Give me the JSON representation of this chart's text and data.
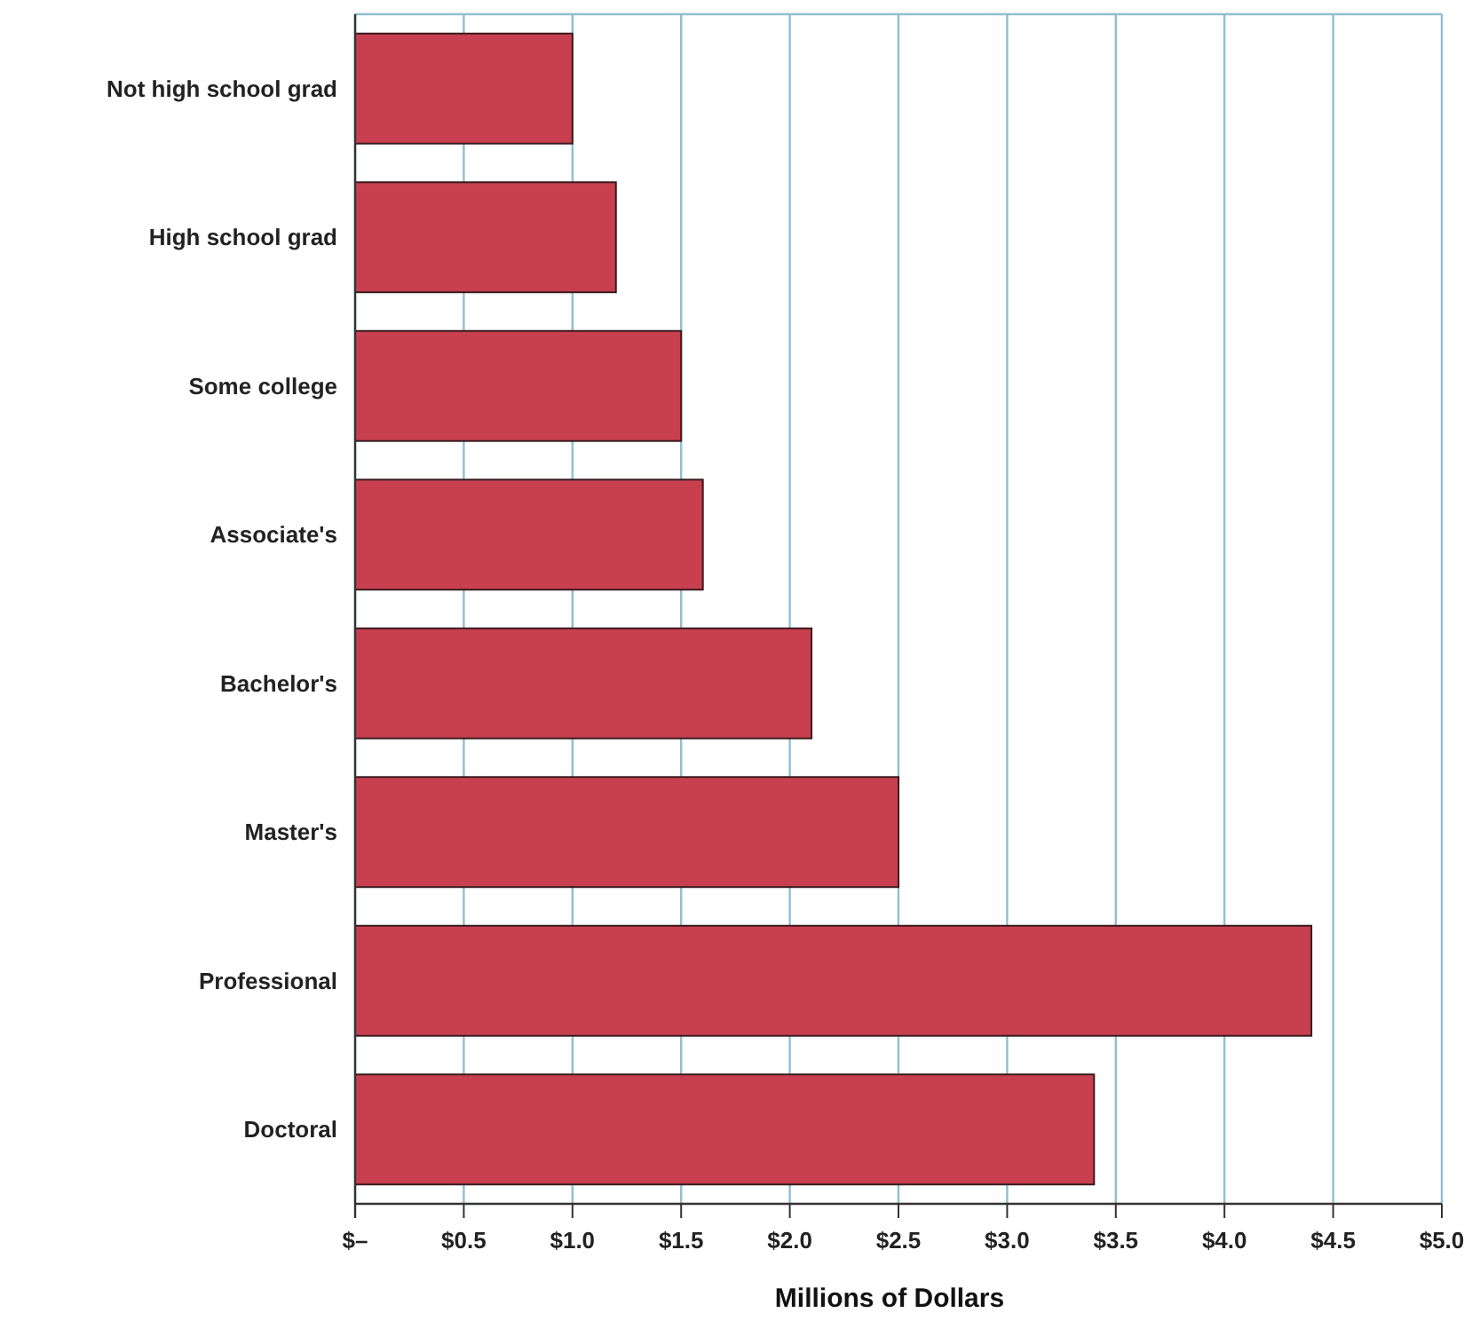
{
  "chart_data": {
    "type": "bar",
    "orientation": "horizontal",
    "xlabel": "Millions of Dollars",
    "categories": [
      "Not high school grad",
      "High school grad",
      "Some college",
      "Associate's",
      "Bachelor's",
      "Master's",
      "Professional",
      "Doctoral"
    ],
    "values": [
      1.0,
      1.2,
      1.5,
      1.6,
      2.1,
      2.5,
      4.4,
      3.4
    ],
    "color": "#c8404f",
    "xlim": [
      0,
      5
    ],
    "xticks": [
      {
        "value": 0,
        "label": "$–"
      },
      {
        "value": 0.5,
        "label": "$0.5"
      },
      {
        "value": 1,
        "label": "$1.0"
      },
      {
        "value": 1.5,
        "label": "$1.5"
      },
      {
        "value": 2,
        "label": "$2.0"
      },
      {
        "value": 2.5,
        "label": "$2.5"
      },
      {
        "value": 3,
        "label": "$3.0"
      },
      {
        "value": 3.5,
        "label": "$3.5"
      },
      {
        "value": 4,
        "label": "$4.0"
      },
      {
        "value": 4.5,
        "label": "$4.5"
      },
      {
        "value": 5,
        "label": "$5.0"
      }
    ],
    "grid": "x"
  }
}
